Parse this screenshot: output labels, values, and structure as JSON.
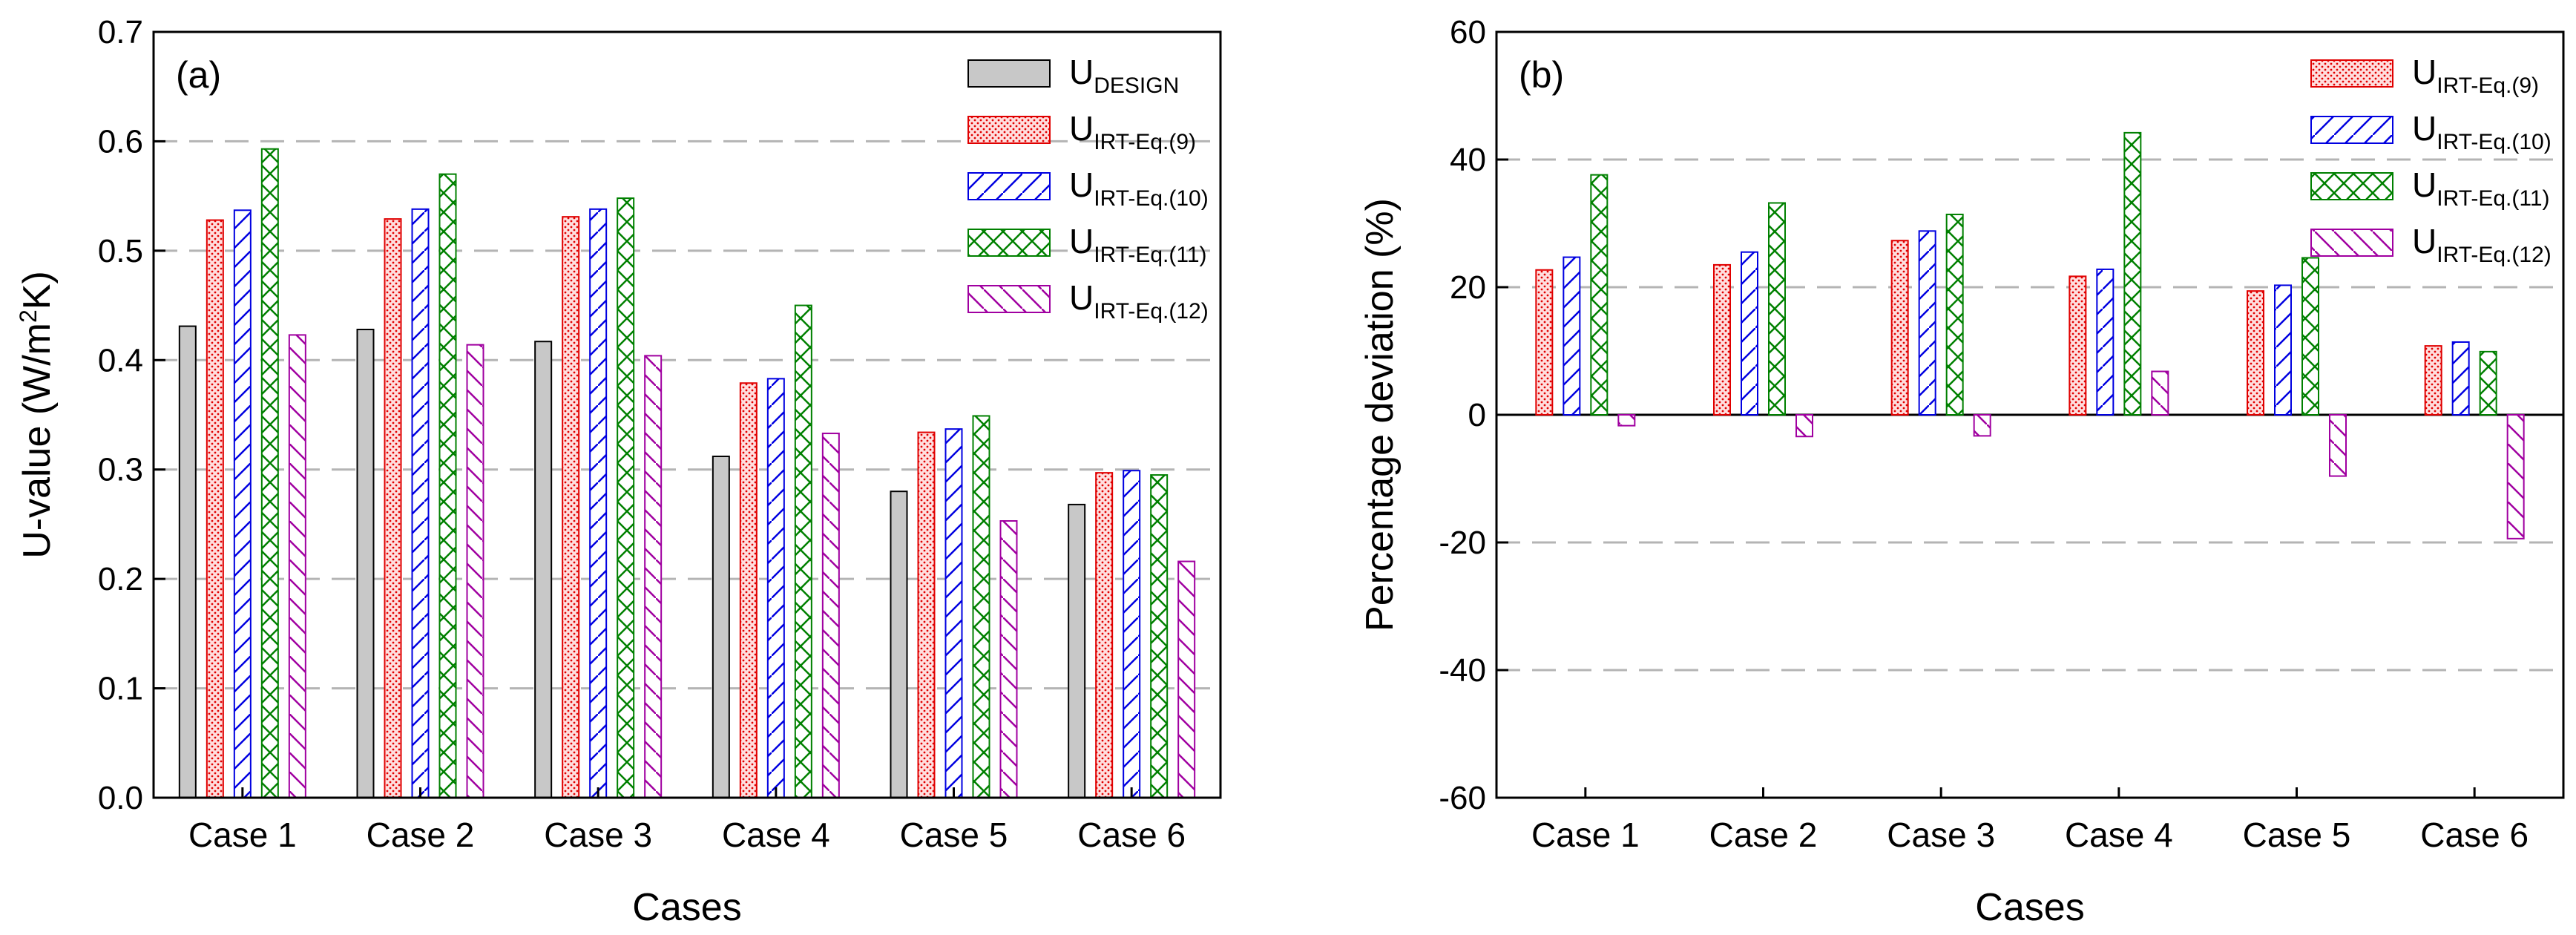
{
  "chart_data": [
    {
      "type": "bar",
      "panel_label": "(a)",
      "xlabel": "Cases",
      "ylabel": "U-value (W/m",
      "ylabel_sup": "2",
      "ylabel_end": "K)",
      "ylim": [
        0,
        0.7
      ],
      "yticks": [
        "0.0",
        "0.1",
        "0.2",
        "0.3",
        "0.4",
        "0.5",
        "0.6",
        "0.7"
      ],
      "categories": [
        "Case 1",
        "Case 2",
        "Case 3",
        "Case 4",
        "Case 5",
        "Case 6"
      ],
      "grid": "dashed horizontal",
      "legend_position": "top-right",
      "series": [
        {
          "name": "U",
          "sub": "DESIGN",
          "pattern": "solid",
          "color": "#c8c8c8",
          "values": [
            0.431,
            0.428,
            0.417,
            0.312,
            0.28,
            0.268
          ]
        },
        {
          "name": "U",
          "sub": "IRT-Eq.(9)",
          "pattern": "dots",
          "color": "#e00000",
          "values": [
            0.528,
            0.529,
            0.531,
            0.379,
            0.334,
            0.297
          ]
        },
        {
          "name": "U",
          "sub": "IRT-Eq.(10)",
          "pattern": "diag",
          "color": "#0000e0",
          "values": [
            0.537,
            0.538,
            0.538,
            0.383,
            0.337,
            0.299
          ]
        },
        {
          "name": "U",
          "sub": "IRT-Eq.(11)",
          "pattern": "cross",
          "color": "#008000",
          "values": [
            0.593,
            0.57,
            0.548,
            0.45,
            0.349,
            0.295
          ]
        },
        {
          "name": "U",
          "sub": "IRT-Eq.(12)",
          "pattern": "back",
          "color": "#a000a0",
          "values": [
            0.423,
            0.414,
            0.404,
            0.333,
            0.253,
            0.216
          ]
        }
      ]
    },
    {
      "type": "bar",
      "panel_label": "(b)",
      "xlabel": "Cases",
      "ylabel": "Percentage deviation (%)",
      "ylim": [
        -60,
        60
      ],
      "yticks": [
        "-60",
        "-40",
        "-20",
        "0",
        "20",
        "40",
        "60"
      ],
      "categories": [
        "Case 1",
        "Case 2",
        "Case 3",
        "Case 4",
        "Case 5",
        "Case 6"
      ],
      "grid": "dashed horizontal",
      "legend_position": "top-right",
      "series": [
        {
          "name": "U",
          "sub": "IRT-Eq.(9)",
          "pattern": "dots",
          "color": "#e00000",
          "values": [
            22.7,
            23.5,
            27.3,
            21.7,
            19.4,
            10.8
          ]
        },
        {
          "name": "U",
          "sub": "IRT-Eq.(10)",
          "pattern": "diag",
          "color": "#0000e0",
          "values": [
            24.7,
            25.5,
            28.8,
            22.8,
            20.3,
            11.4
          ]
        },
        {
          "name": "U",
          "sub": "IRT-Eq.(11)",
          "pattern": "cross",
          "color": "#008000",
          "values": [
            37.6,
            33.2,
            31.4,
            44.2,
            24.6,
            9.9
          ]
        },
        {
          "name": "U",
          "sub": "IRT-Eq.(12)",
          "pattern": "back",
          "color": "#a000a0",
          "values": [
            -1.7,
            -3.4,
            -3.3,
            6.8,
            -9.6,
            -19.4
          ]
        }
      ]
    }
  ]
}
